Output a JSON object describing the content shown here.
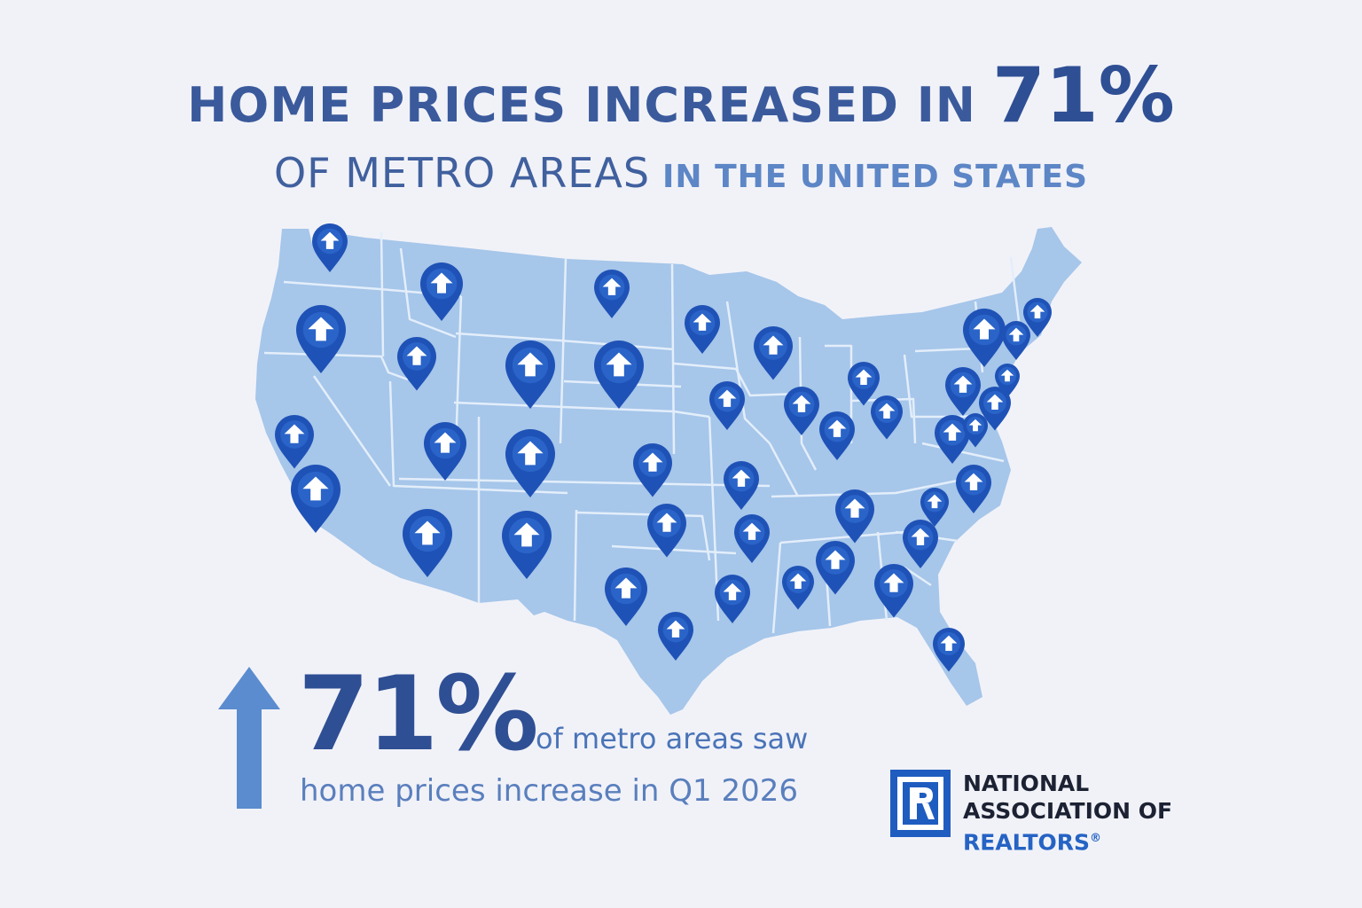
{
  "headline": {
    "line1_text": "HOME PRICES INCREASED IN",
    "line1_percent": "71%",
    "line2_text": "OF METRO AREAS",
    "line2_region": "IN THE UNITED STATES"
  },
  "stat": {
    "percent": "71%",
    "line1": "of metro areas saw",
    "line2": "home prices increase in Q1 2026"
  },
  "logo": {
    "line1": "NATIONAL",
    "line2": "ASSOCIATION OF",
    "line3": "REALTORS",
    "registered": "®"
  },
  "colors": {
    "background": "#f1f2f8",
    "map_fill": "#a6c6ea",
    "state_border": "#e3eefa",
    "pin": "#1f52b6",
    "headline": "#3a5a9c",
    "accent": "#5d86c6",
    "logo_blue": "#1f5cc0"
  },
  "icons": {
    "pin": "map-pin-up-arrow-icon",
    "stat_arrow": "up-arrow-icon",
    "logo": "realtor-r-logo-icon"
  }
}
